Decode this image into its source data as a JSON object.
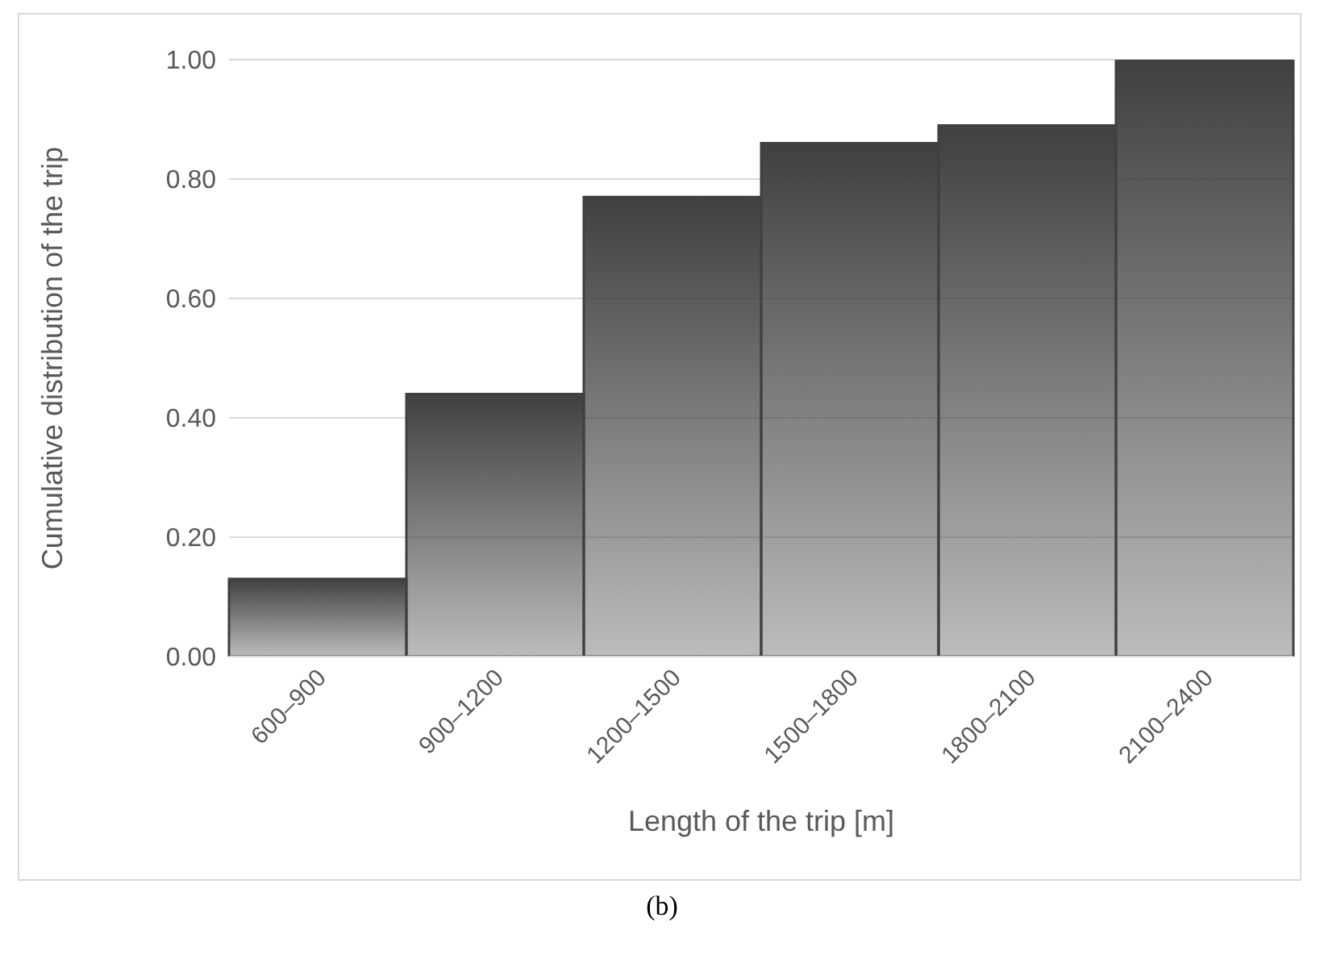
{
  "chart_data": {
    "type": "bar",
    "xlabel": "Length of the trip [m]",
    "ylabel": "Cumulative distribution of the trip",
    "categories": [
      "600–900",
      "900–1200",
      "1200–1500",
      "1500–1800",
      "1800–2100",
      "2100–2400"
    ],
    "values": [
      0.13,
      0.44,
      0.77,
      0.86,
      0.89,
      1.0
    ],
    "color": "#404040",
    "ylim": [
      0,
      1
    ],
    "yticks": [
      {
        "value": 0,
        "label": "0.00"
      },
      {
        "value": 0.2,
        "label": "0.20"
      },
      {
        "value": 0.4,
        "label": "0.40"
      },
      {
        "value": 0.6,
        "label": "0.60"
      },
      {
        "value": 0.8,
        "label": "0.80"
      },
      {
        "value": 1,
        "label": "1.00"
      }
    ],
    "grid": "y",
    "annotations": [
      "(b)"
    ]
  }
}
